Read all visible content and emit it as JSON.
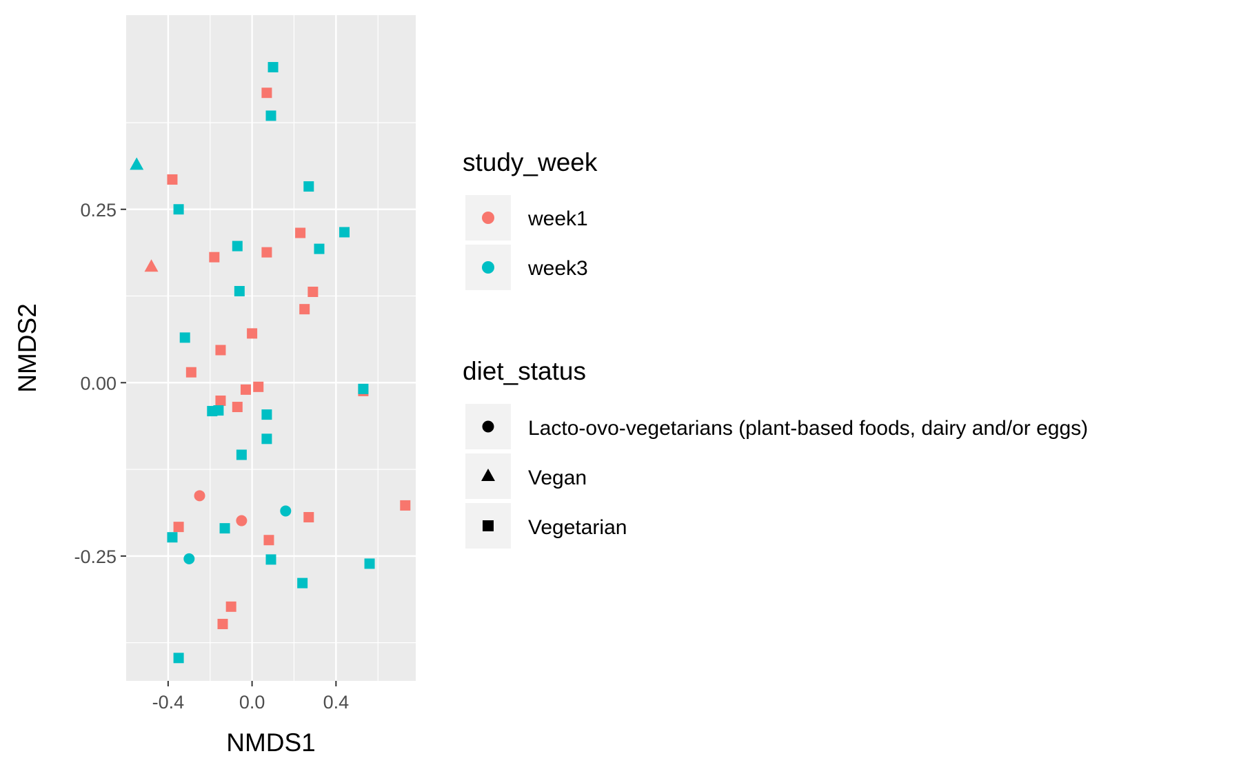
{
  "chart_data": {
    "type": "scatter",
    "title": "",
    "xlabel": "NMDS1",
    "ylabel": "NMDS2",
    "xlim": [
      -0.6,
      0.78
    ],
    "ylim": [
      -0.43,
      0.53
    ],
    "xticks": [
      -0.4,
      0.0,
      0.4
    ],
    "xtick_labels": [
      "-0.4",
      "0.0",
      "0.4"
    ],
    "yticks": [
      -0.25,
      0.0,
      0.25
    ],
    "ytick_labels": [
      "-0.25",
      "0.00",
      "0.25"
    ],
    "grid": true,
    "legend_position": "right",
    "colors": {
      "week1": "#F8766D",
      "week3": "#00BFC4",
      "panel": "#EBEBEB",
      "grid": "#FFFFFF",
      "legend_key": "#F2F2F2"
    },
    "legend": {
      "color": {
        "title": "study_week",
        "entries": [
          {
            "key": "week1",
            "label": "week1"
          },
          {
            "key": "week3",
            "label": "week3"
          }
        ]
      },
      "shape": {
        "title": "diet_status",
        "entries": [
          {
            "key": "circle",
            "label": "Lacto-ovo-vegetarians (plant-based foods, dairy and/or eggs)"
          },
          {
            "key": "triangle",
            "label": "Vegan"
          },
          {
            "key": "square",
            "label": "Vegetarian"
          }
        ]
      }
    },
    "points": [
      {
        "x": 0.1,
        "y": 0.455,
        "week": "week3",
        "shape": "square"
      },
      {
        "x": 0.07,
        "y": 0.418,
        "week": "week1",
        "shape": "square"
      },
      {
        "x": 0.09,
        "y": 0.385,
        "week": "week3",
        "shape": "square"
      },
      {
        "x": -0.55,
        "y": 0.315,
        "week": "week3",
        "shape": "triangle"
      },
      {
        "x": -0.38,
        "y": 0.293,
        "week": "week1",
        "shape": "square"
      },
      {
        "x": 0.27,
        "y": 0.283,
        "week": "week3",
        "shape": "square"
      },
      {
        "x": -0.35,
        "y": 0.25,
        "week": "week3",
        "shape": "square"
      },
      {
        "x": 0.23,
        "y": 0.216,
        "week": "week1",
        "shape": "square"
      },
      {
        "x": 0.44,
        "y": 0.217,
        "week": "week3",
        "shape": "square"
      },
      {
        "x": -0.07,
        "y": 0.197,
        "week": "week3",
        "shape": "square"
      },
      {
        "x": 0.32,
        "y": 0.193,
        "week": "week3",
        "shape": "square"
      },
      {
        "x": 0.07,
        "y": 0.188,
        "week": "week1",
        "shape": "square"
      },
      {
        "x": -0.18,
        "y": 0.181,
        "week": "week1",
        "shape": "square"
      },
      {
        "x": -0.48,
        "y": 0.168,
        "week": "week1",
        "shape": "triangle"
      },
      {
        "x": -0.06,
        "y": 0.132,
        "week": "week3",
        "shape": "square"
      },
      {
        "x": 0.29,
        "y": 0.131,
        "week": "week1",
        "shape": "square"
      },
      {
        "x": 0.25,
        "y": 0.106,
        "week": "week1",
        "shape": "square"
      },
      {
        "x": 0.0,
        "y": 0.071,
        "week": "week1",
        "shape": "square"
      },
      {
        "x": -0.32,
        "y": 0.065,
        "week": "week3",
        "shape": "square"
      },
      {
        "x": -0.15,
        "y": 0.047,
        "week": "week1",
        "shape": "square"
      },
      {
        "x": -0.29,
        "y": 0.015,
        "week": "week1",
        "shape": "square"
      },
      {
        "x": 0.53,
        "y": -0.012,
        "week": "week1",
        "shape": "square"
      },
      {
        "x": 0.53,
        "y": -0.009,
        "week": "week3",
        "shape": "square"
      },
      {
        "x": 0.03,
        "y": -0.006,
        "week": "week1",
        "shape": "square"
      },
      {
        "x": -0.03,
        "y": -0.01,
        "week": "week1",
        "shape": "square"
      },
      {
        "x": -0.15,
        "y": -0.026,
        "week": "week1",
        "shape": "square"
      },
      {
        "x": -0.07,
        "y": -0.035,
        "week": "week1",
        "shape": "square"
      },
      {
        "x": -0.19,
        "y": -0.041,
        "week": "week3",
        "shape": "square"
      },
      {
        "x": -0.16,
        "y": -0.04,
        "week": "week3",
        "shape": "square"
      },
      {
        "x": 0.07,
        "y": -0.046,
        "week": "week3",
        "shape": "square"
      },
      {
        "x": 0.07,
        "y": -0.081,
        "week": "week3",
        "shape": "square"
      },
      {
        "x": -0.05,
        "y": -0.104,
        "week": "week3",
        "shape": "square"
      },
      {
        "x": -0.25,
        "y": -0.163,
        "week": "week1",
        "shape": "circle"
      },
      {
        "x": 0.73,
        "y": -0.177,
        "week": "week1",
        "shape": "square"
      },
      {
        "x": 0.16,
        "y": -0.185,
        "week": "week3",
        "shape": "circle"
      },
      {
        "x": 0.27,
        "y": -0.194,
        "week": "week1",
        "shape": "square"
      },
      {
        "x": -0.05,
        "y": -0.199,
        "week": "week1",
        "shape": "circle"
      },
      {
        "x": -0.35,
        "y": -0.208,
        "week": "week1",
        "shape": "square"
      },
      {
        "x": -0.13,
        "y": -0.21,
        "week": "week3",
        "shape": "square"
      },
      {
        "x": -0.38,
        "y": -0.223,
        "week": "week3",
        "shape": "square"
      },
      {
        "x": 0.08,
        "y": -0.227,
        "week": "week1",
        "shape": "square"
      },
      {
        "x": -0.3,
        "y": -0.254,
        "week": "week3",
        "shape": "circle"
      },
      {
        "x": 0.09,
        "y": -0.255,
        "week": "week3",
        "shape": "square"
      },
      {
        "x": 0.56,
        "y": -0.261,
        "week": "week3",
        "shape": "square"
      },
      {
        "x": 0.24,
        "y": -0.289,
        "week": "week3",
        "shape": "square"
      },
      {
        "x": -0.1,
        "y": -0.323,
        "week": "week1",
        "shape": "square"
      },
      {
        "x": -0.14,
        "y": -0.348,
        "week": "week1",
        "shape": "square"
      },
      {
        "x": -0.35,
        "y": -0.397,
        "week": "week3",
        "shape": "square"
      }
    ]
  }
}
